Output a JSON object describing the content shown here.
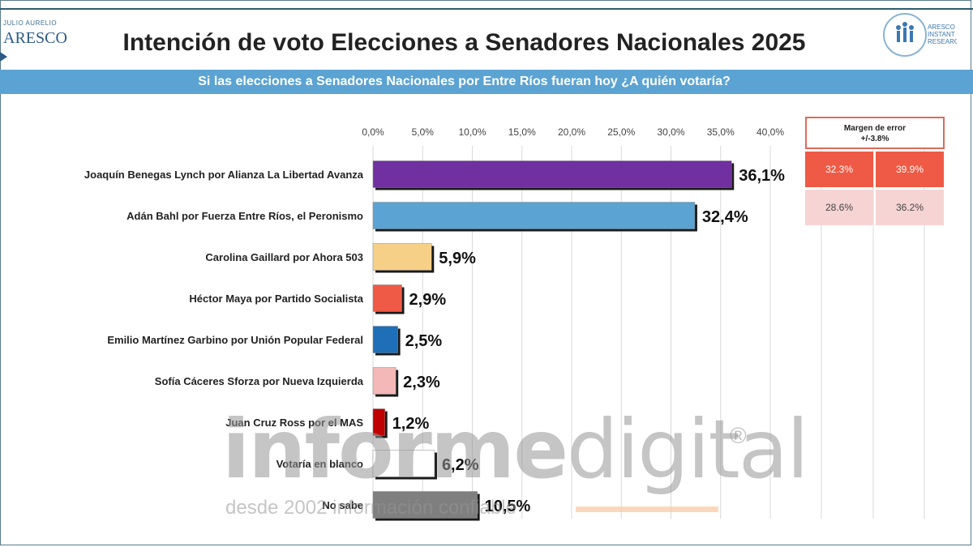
{
  "header": {
    "brand_left_small": "JULIO AURELIO",
    "brand_left": "ARESCO",
    "title": "Intención de voto Elecciones a Senadores Nacionales 2025",
    "brand_right_lines": [
      "ARESCO",
      "INSTANT",
      "RESEARCH"
    ],
    "subtitle": "Si las elecciones a Senadores Nacionales por Entre Ríos fueran hoy ¿A quién votaría?"
  },
  "chart_data": {
    "type": "bar",
    "orientation": "horizontal",
    "title": "Intención de voto Elecciones a Senadores Nacionales 2025",
    "xlim": [
      0,
      40
    ],
    "tick_labels": [
      "0,0%",
      "5,0%",
      "10,0%",
      "15,0%",
      "20,0%",
      "25,0%",
      "30,0%",
      "35,0%",
      "40,0%"
    ],
    "ticks": [
      0,
      5,
      10,
      15,
      20,
      25,
      30,
      35,
      40
    ],
    "grid": true,
    "categories": [
      "Joaquín Benegas Lynch por Alianza La Libertad Avanza",
      "Adán Bahl por Fuerza Entre Ríos, el Peronismo",
      "Carolina Gaillard por Ahora 503",
      "Héctor Maya por Partido Socialista",
      "Emilio Martínez Garbino por Unión Popular Federal",
      "Sofía Cáceres Sforza por Nueva Izquierda",
      "Juan Cruz Ross por el MAS",
      "Votaría en blanco",
      "No sabe"
    ],
    "values": [
      36.1,
      32.4,
      5.9,
      2.9,
      2.5,
      2.3,
      1.2,
      6.2,
      10.5
    ],
    "value_labels": [
      "36,1%",
      "32,4%",
      "5,9%",
      "2,9%",
      "2,5%",
      "2,3%",
      "1,2%",
      "6,2%",
      "10,5%"
    ],
    "colors": [
      "#7030a0",
      "#5ba3d3",
      "#f7d088",
      "#ee5a45",
      "#1f6fb8",
      "#f4b8b8",
      "#c00000",
      "#ffffff",
      "#7f7f7f"
    ]
  },
  "margin_of_error": {
    "title": "Margen de error",
    "value": "+/-3.8%",
    "rows": [
      {
        "low": "32.3%",
        "high": "39.9%"
      },
      {
        "low": "28.6%",
        "high": "36.2%"
      }
    ]
  },
  "watermark": {
    "brand_bold": "informe",
    "brand_light": "digital",
    "registered": "®",
    "tagline": "desde 2002 información confiable"
  }
}
